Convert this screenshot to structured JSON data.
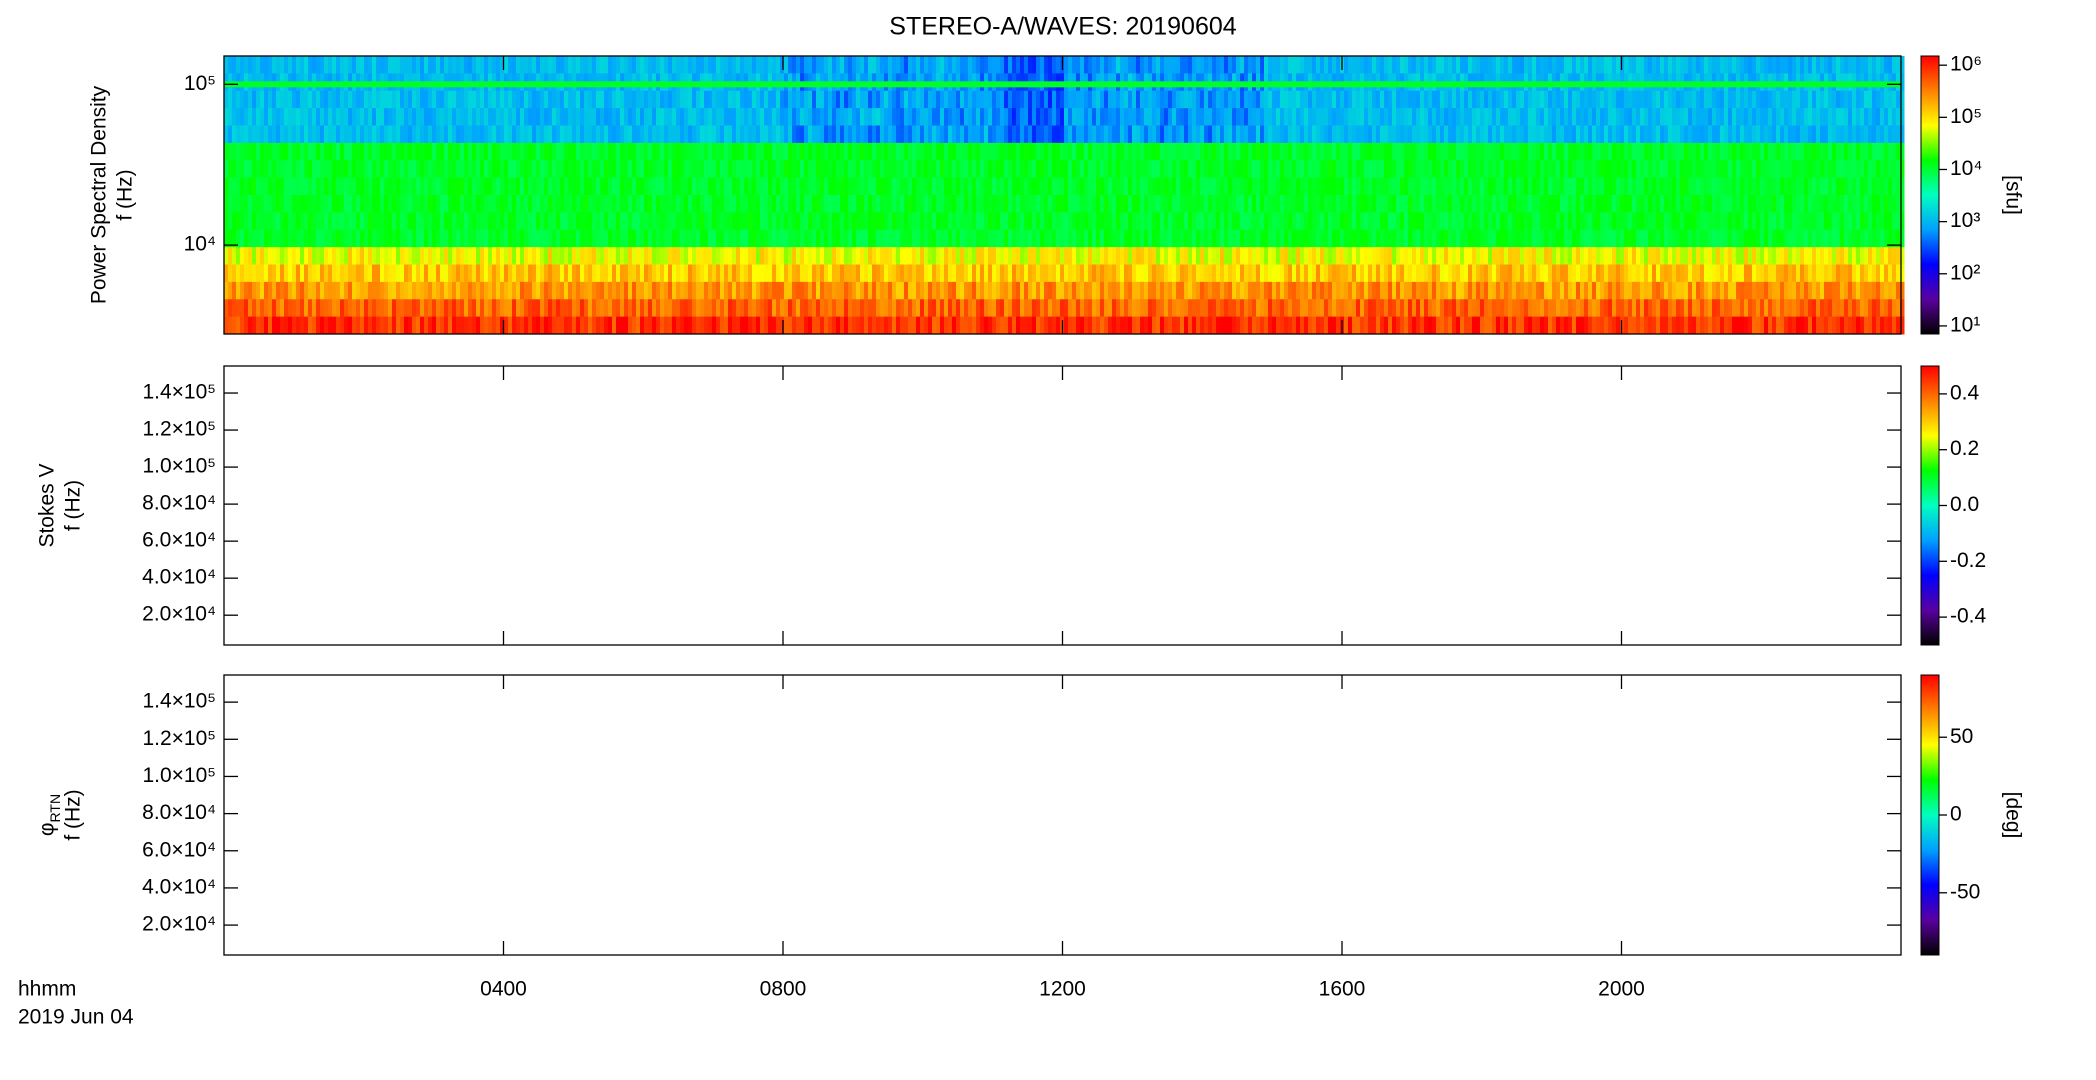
{
  "chart_data": {
    "type": "spectrogram",
    "title": "STEREO-A/WAVES: 20190604",
    "xlim": [
      0,
      24
    ],
    "xticks": [
      {
        "value": 4,
        "label": "0400"
      },
      {
        "value": 8,
        "label": "0800"
      },
      {
        "value": 12,
        "label": "1200"
      },
      {
        "value": 16,
        "label": "1600"
      },
      {
        "value": 20,
        "label": "2000"
      }
    ],
    "xlabel": "hhmm",
    "date": "2019 Jun 04",
    "colormap": [
      "#000000",
      "#5a00a0",
      "#0000ff",
      "#00a0ff",
      "#00ffc0",
      "#00ff00",
      "#ffff00",
      "#ff8000",
      "#ff0000"
    ],
    "panels": [
      {
        "ylabel": [
          "Power Spectral Density",
          "f (Hz)"
        ],
        "ylog": true,
        "ylim": [
          2800,
          150000
        ],
        "yticks": [
          {
            "value": 10000,
            "label": "10⁴"
          },
          {
            "value": 100000,
            "label": "10⁵"
          }
        ],
        "colorbar": {
          "log": true,
          "clim": [
            7,
            1500000
          ],
          "ticks": [
            {
              "value": 10,
              "label": "10¹"
            },
            {
              "value": 100,
              "label": "10²"
            },
            {
              "value": 1000,
              "label": "10³"
            },
            {
              "value": 10000,
              "label": "10⁴"
            },
            {
              "value": 100000,
              "label": "10⁵"
            },
            {
              "value": 1000000,
              "label": "10⁶"
            }
          ],
          "unit": "[sfu]"
        }
      },
      {
        "ylabel": [
          "Stokes V",
          "f (Hz)"
        ],
        "ylog": false,
        "ylim": [
          3900,
          154600
        ],
        "yticks": [
          {
            "value": 20000,
            "label": "2.0×10⁴"
          },
          {
            "value": 40000,
            "label": "4.0×10⁴"
          },
          {
            "value": 60000,
            "label": "6.0×10⁴"
          },
          {
            "value": 80000,
            "label": "8.0×10⁴"
          },
          {
            "value": 100000,
            "label": "1.0×10⁵"
          },
          {
            "value": 120000,
            "label": "1.2×10⁵"
          },
          {
            "value": 140000,
            "label": "1.4×10⁵"
          }
        ],
        "colorbar": {
          "log": false,
          "clim": [
            -0.5,
            0.5
          ],
          "ticks": [
            {
              "value": -0.4,
              "label": "-0.4"
            },
            {
              "value": -0.2,
              "label": "-0.2"
            },
            {
              "value": 0,
              "label": "0.0"
            },
            {
              "value": 0.2,
              "label": "0.2"
            },
            {
              "value": 0.4,
              "label": "0.4"
            }
          ]
        }
      },
      {
        "ylabel": [
          "φ",
          "f (Hz)"
        ],
        "ylabel_sub": "RTN",
        "ylog": false,
        "ylim": [
          3900,
          154600
        ],
        "yticks": [
          {
            "value": 20000,
            "label": "2.0×10⁴"
          },
          {
            "value": 40000,
            "label": "4.0×10⁴"
          },
          {
            "value": 60000,
            "label": "6.0×10⁴"
          },
          {
            "value": 80000,
            "label": "8.0×10⁴"
          },
          {
            "value": 100000,
            "label": "1.0×10⁵"
          },
          {
            "value": 120000,
            "label": "1.2×10⁵"
          },
          {
            "value": 140000,
            "label": "1.4×10⁵"
          }
        ],
        "colorbar": {
          "log": false,
          "clim": [
            -90,
            90
          ],
          "ticks": [
            -50,
            0,
            50
          ],
          "unit": "[deg]"
        }
      }
    ]
  }
}
